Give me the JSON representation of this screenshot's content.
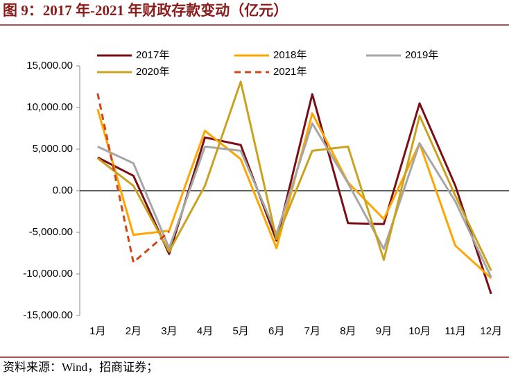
{
  "chart_data": {
    "type": "line",
    "title": "图 9：2017 年-2021 年财政存款变动（亿元）",
    "source": "资料来源：Wind，招商证券；",
    "categories": [
      "1月",
      "2月",
      "3月",
      "4月",
      "5月",
      "6月",
      "7月",
      "8月",
      "9月",
      "10月",
      "11月",
      "12月"
    ],
    "series": [
      {
        "name": "2017年",
        "color": "#7b0e14",
        "values": [
          4000,
          1800,
          -7600,
          6400,
          5500,
          -6000,
          11600,
          -3900,
          -4000,
          10500,
          600,
          -12400
        ]
      },
      {
        "name": "2018年",
        "color": "#ffa500",
        "values": [
          9800,
          -5300,
          -4800,
          7200,
          3800,
          -6900,
          9300,
          1000,
          -3400,
          5700,
          -6600,
          -10500
        ]
      },
      {
        "name": "2019年",
        "color": "#a6a6a6",
        "values": [
          5300,
          3300,
          -6900,
          5300,
          4800,
          -5200,
          8100,
          900,
          -7000,
          5700,
          -1300,
          -10400
        ]
      },
      {
        "name": "2020年",
        "color": "#c9a21f",
        "values": [
          3900,
          600,
          -7300,
          600,
          13100,
          -5800,
          4800,
          5300,
          -8300,
          9000,
          -600,
          -9600
        ]
      },
      {
        "name": "2021年",
        "color": "#d0461a",
        "dashed": true,
        "values": [
          11700,
          -8600,
          -4900,
          null,
          null,
          null,
          null,
          null,
          null,
          null,
          null,
          null
        ]
      }
    ],
    "ylim": [
      -15000,
      15000
    ],
    "yticks": [
      {
        "value": -15000,
        "label": "-15,000.00"
      },
      {
        "value": -10000,
        "label": "-10,000.00"
      },
      {
        "value": -5000,
        "label": "-5,000.00"
      },
      {
        "value": 0,
        "label": "0.00"
      },
      {
        "value": 5000,
        "label": "5,000.00"
      },
      {
        "value": 10000,
        "label": "10,000.00"
      },
      {
        "value": 15000,
        "label": "15,000.00"
      }
    ],
    "grid": false
  }
}
